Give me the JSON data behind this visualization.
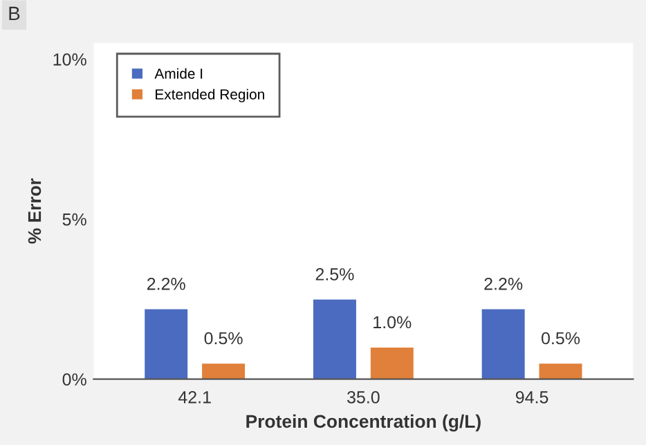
{
  "chart_data": {
    "type": "bar",
    "xlabel": "Protein Concentration (g/L)",
    "ylabel": "% Error",
    "categories": [
      "42.1",
      "35.0",
      "94.5"
    ],
    "series": [
      {
        "name": "Amide I",
        "color": "#4a6bbf",
        "values": [
          2.2,
          2.5,
          2.2
        ],
        "value_labels": [
          "2.2%",
          "2.5%",
          "2.2%"
        ]
      },
      {
        "name": "Extended Region",
        "color": "#e0803a",
        "values": [
          0.5,
          1.0,
          0.5
        ],
        "value_labels": [
          "0.5%",
          "1.0%",
          "0.5%"
        ]
      }
    ],
    "ylim": [
      0,
      10.5
    ],
    "yticks": [
      {
        "value": 0,
        "label": "0%"
      },
      {
        "value": 5,
        "label": "5%"
      },
      {
        "value": 10,
        "label": "10%"
      }
    ],
    "legend": "top left",
    "grid": false,
    "annotations": [
      "B"
    ]
  }
}
